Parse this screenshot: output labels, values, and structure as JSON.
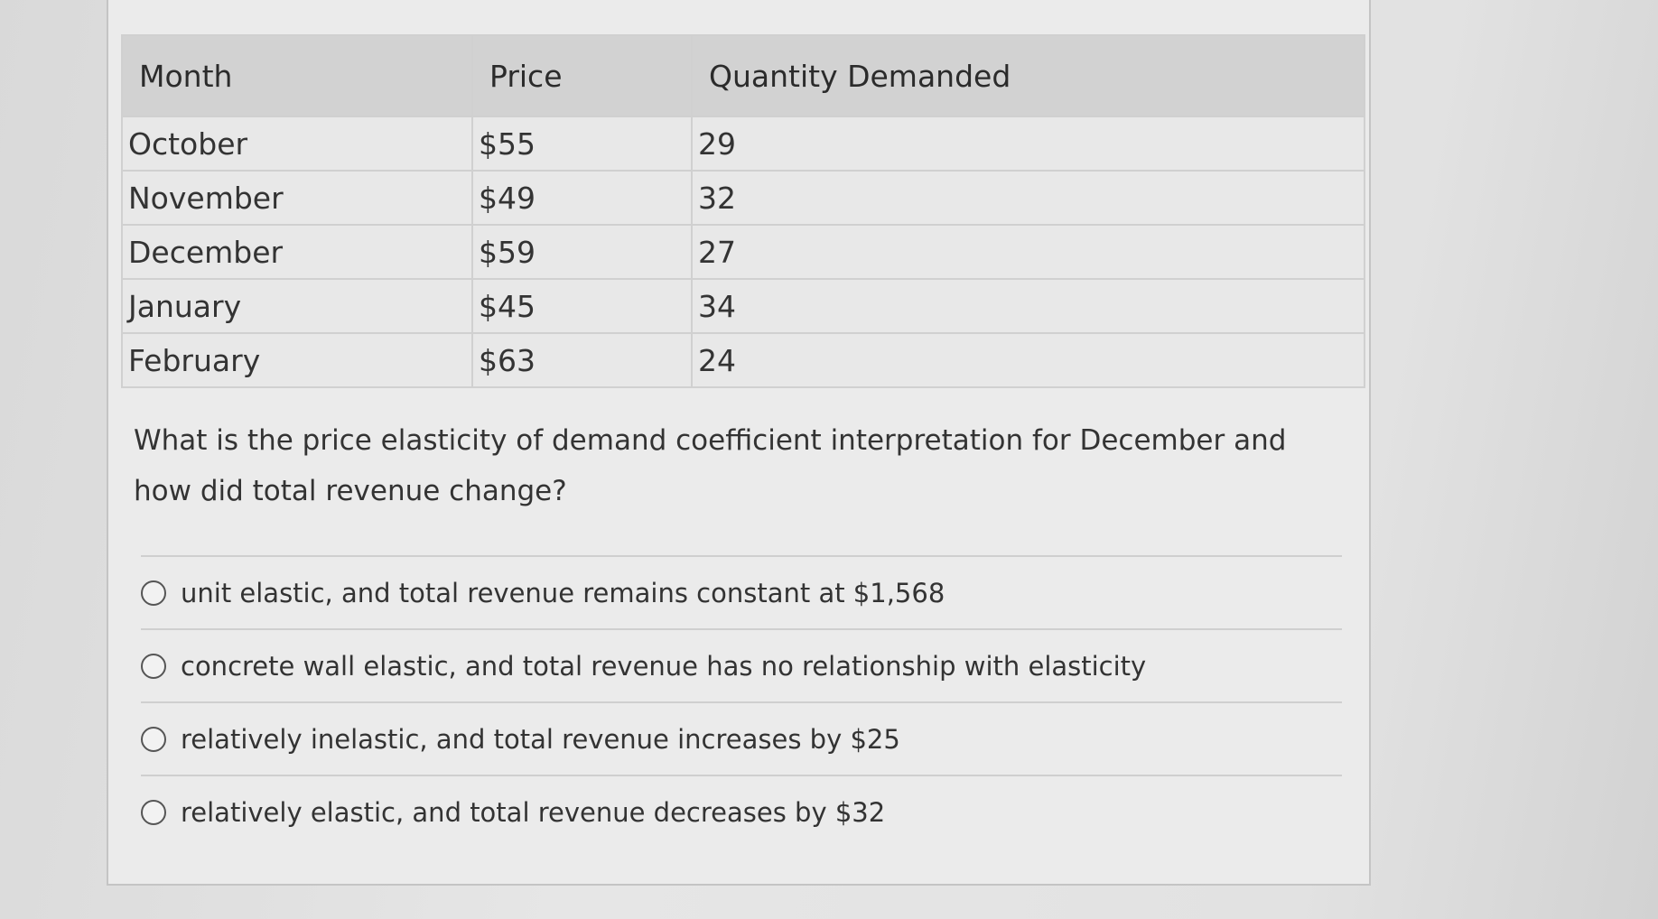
{
  "table": {
    "header": [
      "Month",
      "Price",
      "Quantity Demanded"
    ],
    "rows": [
      [
        "October",
        "$55",
        "29"
      ],
      [
        "November",
        "$49",
        "32"
      ],
      [
        "December",
        "$59",
        "27"
      ],
      [
        "January",
        "$45",
        "34"
      ],
      [
        "February",
        "$63",
        "24"
      ]
    ]
  },
  "question": "What is the price elasticity of demand coefficient interpretation for December and how did total revenue change?",
  "options": [
    "unit elastic, and total revenue remains constant at $1,568",
    "concrete wall elastic, and total revenue has no relationship with elasticity",
    "relatively inelastic, and total revenue increases by $25",
    "relatively elastic, and total revenue decreases by $32"
  ]
}
